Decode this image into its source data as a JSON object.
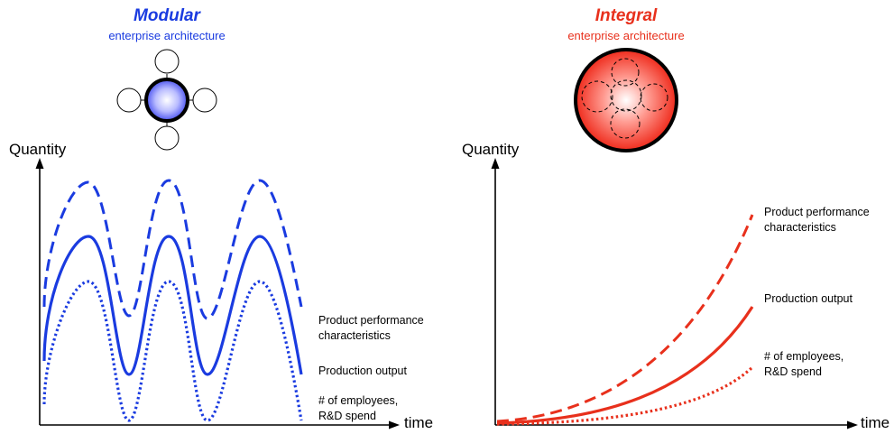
{
  "colors": {
    "modular": "#1a3be0",
    "integral": "#e8301c"
  },
  "modular": {
    "title": "Modular",
    "subtitle": "enterprise architecture",
    "y_axis_label": "Quantity",
    "x_axis_label": "time",
    "series_labels": {
      "performance": "Product performance\ncharacteristics",
      "output": "Production output",
      "employees": "# of employees,\nR&D spend"
    }
  },
  "integral": {
    "title": "Integral",
    "subtitle": "enterprise architecture",
    "y_axis_label": "Quantity",
    "x_axis_label": "time",
    "series_labels": {
      "performance": "Product performance\ncharacteristics",
      "output": "Production output",
      "employees": "# of employees,\nR&D spend"
    }
  }
}
